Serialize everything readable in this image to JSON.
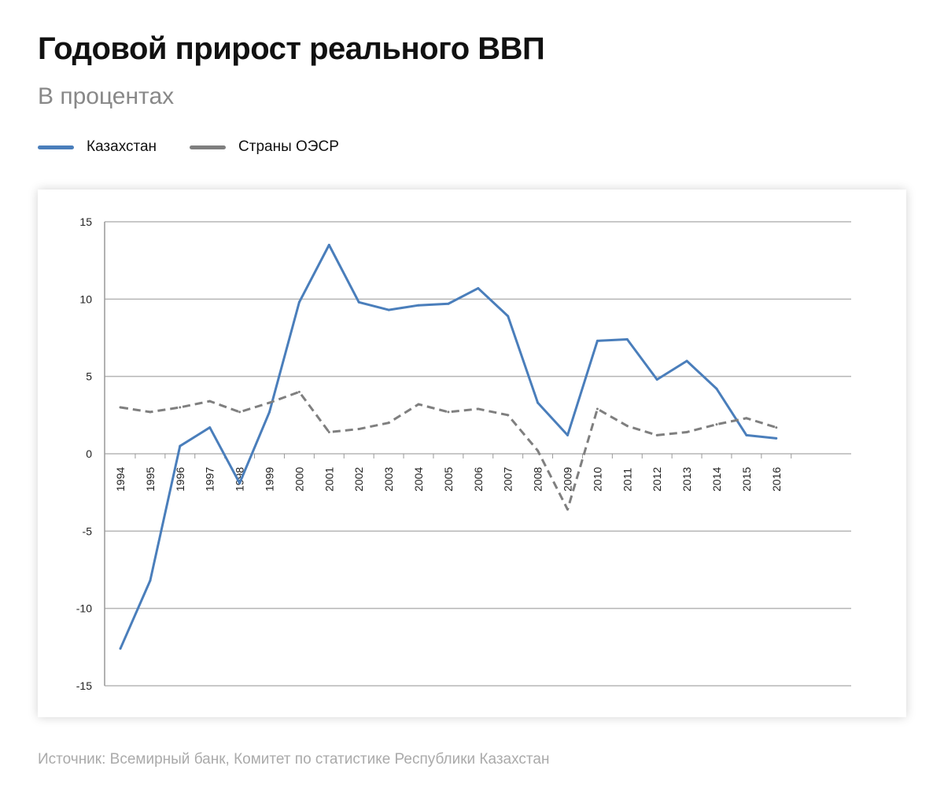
{
  "title": "Годовой прирост реального ВВП",
  "subtitle": "В процентах",
  "source": "Источник: Всемирный банк, Комитет по статистике Республики Казахстан",
  "chart_data": {
    "type": "line",
    "title": "Годовой прирост реального ВВП",
    "ylabel": "В процентах",
    "ylim": [
      -15,
      15
    ],
    "yticks": [
      15,
      10,
      5,
      0,
      -5,
      -10,
      -15
    ],
    "grid": true,
    "legend_position": "top-left",
    "x": [
      "1994",
      "1995",
      "1996",
      "1997",
      "1998",
      "1999",
      "2000",
      "2001",
      "2002",
      "2003",
      "2004",
      "2005",
      "2006",
      "2007",
      "2008",
      "2009",
      "2010",
      "2011",
      "2012",
      "2013",
      "2014",
      "2015",
      "2016"
    ],
    "series": [
      {
        "name": "Казахстан",
        "color": "#4a7ebb",
        "style": "solid",
        "values": [
          -12.6,
          -8.2,
          0.5,
          1.7,
          -1.9,
          2.7,
          9.8,
          13.5,
          9.8,
          9.3,
          9.6,
          9.7,
          10.7,
          8.9,
          3.3,
          1.2,
          7.3,
          7.4,
          4.8,
          6.0,
          4.2,
          1.2,
          1.0
        ]
      },
      {
        "name": "Страны ОЭСР",
        "color": "#7f7f7f",
        "style": "dashed",
        "values": [
          3.0,
          2.7,
          3.0,
          3.4,
          2.7,
          3.3,
          4.0,
          1.4,
          1.6,
          2.0,
          3.2,
          2.7,
          2.9,
          2.5,
          0.2,
          -3.6,
          2.9,
          1.8,
          1.2,
          1.4,
          1.9,
          2.3,
          1.7
        ]
      }
    ]
  }
}
